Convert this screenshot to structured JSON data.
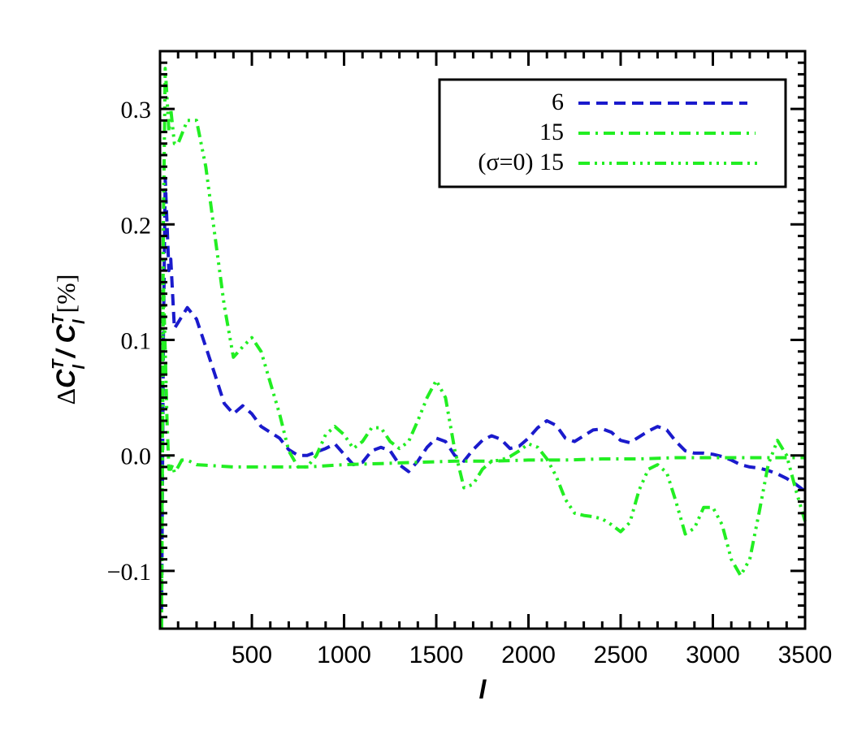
{
  "chart_data": {
    "type": "line",
    "title": "",
    "xlabel": "l",
    "ylabel": "ΔC_l^T / C_l^T [%]",
    "ylabel_parts": {
      "delta": "Δ",
      "c1": "C",
      "sup1": "T",
      "sub1": "l",
      "slash": " / ",
      "c2": "C",
      "sup2": "T",
      "sub2": "l",
      "unit": " [%]"
    },
    "xlim": [
      2,
      3500
    ],
    "ylim": [
      -0.15,
      0.35
    ],
    "xticks": [
      500,
      1000,
      1500,
      2000,
      2500,
      3000,
      3500
    ],
    "xtick_labels": [
      "500",
      "1000",
      "1500",
      "2000",
      "2500",
      "3000",
      "3500"
    ],
    "yticks": [
      -0.1,
      0.0,
      0.1,
      0.2,
      0.3
    ],
    "ytick_labels": [
      "−0.1",
      "0.0",
      "0.1",
      "0.2",
      "0.3"
    ],
    "legend_position": "top-right",
    "series": [
      {
        "name": "6",
        "color": "#1a1acc",
        "dash": "dashed",
        "x": [
          10,
          20,
          30,
          40,
          50,
          60,
          80,
          100,
          150,
          200,
          250,
          300,
          350,
          400,
          450,
          500,
          550,
          600,
          650,
          700,
          750,
          800,
          850,
          900,
          950,
          1000,
          1050,
          1100,
          1150,
          1200,
          1250,
          1300,
          1350,
          1400,
          1450,
          1500,
          1550,
          1600,
          1650,
          1700,
          1750,
          1800,
          1850,
          1900,
          1950,
          2000,
          2050,
          2100,
          2150,
          2200,
          2250,
          2300,
          2350,
          2400,
          2450,
          2500,
          2550,
          2600,
          2650,
          2700,
          2750,
          2800,
          2850,
          2900,
          2950,
          3000,
          3050,
          3100,
          3150,
          3200,
          3250,
          3300,
          3350,
          3400,
          3450,
          3500
        ],
        "values": [
          -0.15,
          0.1,
          0.24,
          0.2,
          0.16,
          0.17,
          0.11,
          0.115,
          0.128,
          0.118,
          0.094,
          0.07,
          0.045,
          0.036,
          0.043,
          0.036,
          0.025,
          0.02,
          0.015,
          0.005,
          0.0,
          0.0,
          0.003,
          0.006,
          0.01,
          0.001,
          -0.008,
          -0.006,
          0.004,
          0.007,
          0.004,
          -0.008,
          -0.014,
          -0.005,
          0.007,
          0.015,
          0.012,
          0.0,
          -0.005,
          0.005,
          0.013,
          0.017,
          0.014,
          0.006,
          0.008,
          0.015,
          0.024,
          0.03,
          0.026,
          0.015,
          0.012,
          0.017,
          0.022,
          0.023,
          0.02,
          0.013,
          0.011,
          0.016,
          0.021,
          0.025,
          0.022,
          0.012,
          0.004,
          0.002,
          0.002,
          0.001,
          -0.001,
          -0.004,
          -0.008,
          -0.01,
          -0.011,
          -0.013,
          -0.016,
          -0.02,
          -0.025,
          -0.031
        ]
      },
      {
        "name": "15",
        "color": "#22ee22",
        "dash": "dashdot",
        "x": [
          10,
          20,
          30,
          40,
          50,
          60,
          70,
          80,
          100,
          120,
          150,
          200,
          300,
          400,
          500,
          600,
          700,
          800,
          900,
          1000,
          1200,
          1400,
          1600,
          1800,
          2000,
          2200,
          2400,
          2600,
          2800,
          3000,
          3200,
          3400,
          3500
        ],
        "values": [
          -0.15,
          0.15,
          0.09,
          0.03,
          -0.012,
          -0.012,
          -0.008,
          -0.015,
          -0.01,
          -0.004,
          -0.004,
          -0.008,
          -0.009,
          -0.01,
          -0.01,
          -0.01,
          -0.01,
          -0.01,
          -0.009,
          -0.008,
          -0.007,
          -0.006,
          -0.005,
          -0.005,
          -0.004,
          -0.004,
          -0.003,
          -0.003,
          -0.002,
          -0.002,
          -0.002,
          -0.002,
          -0.002
        ]
      },
      {
        "name": "(σ=0) 15",
        "color": "#22ee22",
        "dash": "dashdotdotdot",
        "x": [
          10,
          20,
          30,
          40,
          50,
          60,
          80,
          100,
          150,
          200,
          250,
          300,
          350,
          400,
          450,
          500,
          550,
          600,
          650,
          700,
          750,
          800,
          850,
          900,
          950,
          1000,
          1050,
          1100,
          1150,
          1200,
          1250,
          1300,
          1350,
          1400,
          1450,
          1500,
          1550,
          1600,
          1650,
          1700,
          1750,
          1800,
          1850,
          1900,
          1950,
          2000,
          2050,
          2100,
          2150,
          2200,
          2250,
          2300,
          2350,
          2400,
          2450,
          2500,
          2550,
          2600,
          2650,
          2700,
          2750,
          2800,
          2850,
          2900,
          2950,
          3000,
          3050,
          3100,
          3150,
          3200,
          3250,
          3300,
          3350,
          3400,
          3450,
          3500
        ],
        "values": [
          -0.15,
          0.2,
          0.335,
          0.31,
          0.28,
          0.3,
          0.27,
          0.27,
          0.29,
          0.29,
          0.25,
          0.19,
          0.13,
          0.085,
          0.094,
          0.102,
          0.09,
          0.063,
          0.036,
          0.004,
          -0.01,
          -0.01,
          0.0,
          0.018,
          0.025,
          0.018,
          0.006,
          0.012,
          0.024,
          0.024,
          0.012,
          0.006,
          0.012,
          0.03,
          0.05,
          0.065,
          0.05,
          0.005,
          -0.028,
          -0.025,
          -0.012,
          -0.005,
          -0.004,
          -0.001,
          0.004,
          0.01,
          0.007,
          -0.003,
          -0.018,
          -0.038,
          -0.05,
          -0.052,
          -0.053,
          -0.055,
          -0.06,
          -0.066,
          -0.058,
          -0.03,
          -0.012,
          -0.008,
          -0.015,
          -0.04,
          -0.068,
          -0.063,
          -0.045,
          -0.045,
          -0.06,
          -0.09,
          -0.104,
          -0.09,
          -0.05,
          -0.008,
          0.013,
          0.0,
          -0.03,
          -0.057
        ]
      }
    ]
  }
}
